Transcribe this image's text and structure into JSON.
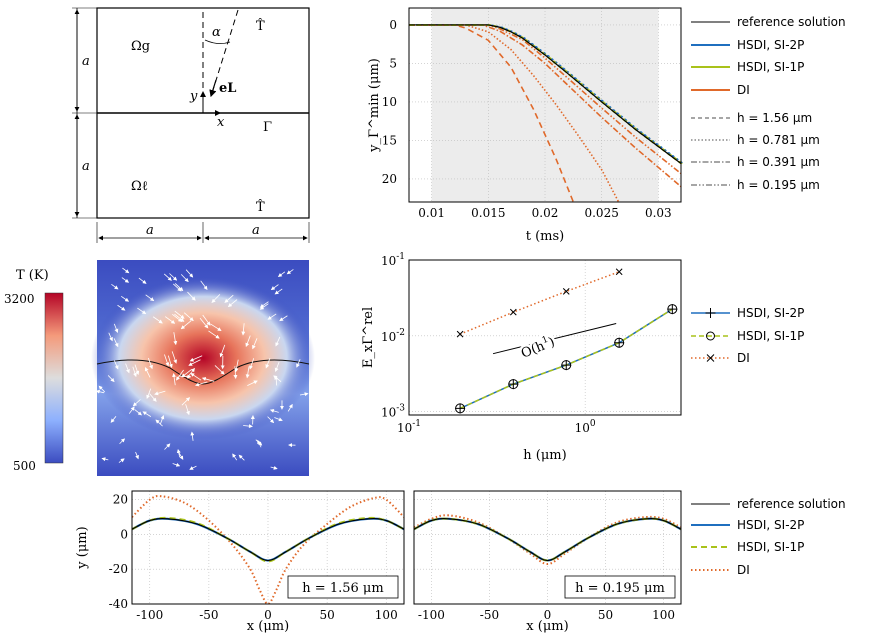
{
  "colors": {
    "reference": "#000000",
    "hsdi_2p": "#1f6fbf",
    "hsdi_1p": "#a9c21a",
    "di": "#e0692a",
    "gray": "#888888",
    "shade": "#ececec"
  },
  "domain": {
    "omega_g": "Ωg",
    "omega_l": "Ωℓ",
    "a_label": "a",
    "alpha": "α",
    "T_hat": "T̂",
    "e_L": "eL",
    "y": "y",
    "x": "x",
    "gamma": "Γ"
  },
  "temperature_colorbar": {
    "label": "T (K)",
    "max": "3200",
    "min": "500"
  },
  "legend_top": {
    "reference": "reference solution",
    "hsdi_2p": "HSDI, SI-2P",
    "hsdi_1p": "HSDI, SI-1P",
    "di": "DI",
    "h1": "h = 1.56 μm",
    "h2": "h = 0.781 μm",
    "h3": "h = 0.391 μm",
    "h4": "h = 0.195 μm"
  },
  "legend_mid": {
    "hsdi_2p": "HSDI, SI-2P",
    "hsdi_1p": "HSDI, SI-1P",
    "di": "DI"
  },
  "legend_bottom": {
    "reference": "reference solution",
    "hsdi_2p": "HSDI, SI-2P",
    "hsdi_1p": "HSDI, SI-1P",
    "di": "DI"
  },
  "chart_data": [
    {
      "type": "line",
      "xlabel": "t (ms)",
      "ylabel": "y_Γ^min (μm)",
      "xlim": [
        0.008,
        0.032
      ],
      "ylim": [
        0,
        23
      ],
      "y_inverted": true,
      "xticks": [
        "0.01",
        "0.015",
        "0.02",
        "0.025",
        "0.03"
      ],
      "yticks": [
        "0",
        "5",
        "10",
        "15",
        "20"
      ],
      "grid": true,
      "legend_position": "outside-right",
      "series": [
        {
          "name": "reference solution",
          "x": [
            0.008,
            0.015,
            0.016,
            0.017,
            0.018,
            0.02,
            0.022,
            0.025,
            0.028,
            0.032
          ],
          "y": [
            0,
            0,
            0.3,
            0.9,
            1.7,
            3.9,
            6.3,
            10.0,
            13.6,
            18.0
          ]
        },
        {
          "name": "HSDI, SI-2P",
          "x": [
            0.008,
            0.015,
            0.016,
            0.017,
            0.018,
            0.02,
            0.022,
            0.025,
            0.028,
            0.032
          ],
          "y": [
            0,
            0,
            0.3,
            0.9,
            1.7,
            3.9,
            6.3,
            10.0,
            13.6,
            18.0
          ]
        },
        {
          "name": "HSDI, SI-1P",
          "x": [
            0.008,
            0.015,
            0.016,
            0.017,
            0.018,
            0.02,
            0.022,
            0.025,
            0.028,
            0.032
          ],
          "y": [
            0,
            0,
            0.3,
            0.9,
            1.7,
            3.9,
            6.3,
            10.0,
            13.6,
            18.0
          ]
        },
        {
          "name": "DI, h = 1.56 μm",
          "x": [
            0.008,
            0.012,
            0.013,
            0.015,
            0.017,
            0.019,
            0.021,
            0.0225
          ],
          "y": [
            0,
            0,
            0.4,
            2.0,
            5.5,
            11.0,
            17.5,
            23
          ]
        },
        {
          "name": "DI, h = 0.781 μm",
          "x": [
            0.008,
            0.013,
            0.015,
            0.017,
            0.019,
            0.021,
            0.023,
            0.025,
            0.0265
          ],
          "y": [
            0,
            0,
            0.9,
            3.2,
            6.6,
            10.4,
            14.5,
            18.8,
            23
          ]
        },
        {
          "name": "DI, h = 0.391 μm",
          "x": [
            0.008,
            0.0145,
            0.016,
            0.018,
            0.02,
            0.022,
            0.025,
            0.028,
            0.032
          ],
          "y": [
            0,
            0,
            0.8,
            2.6,
            5.0,
            7.8,
            12.0,
            16.0,
            21.0
          ]
        },
        {
          "name": "DI, h = 0.195 μm",
          "x": [
            0.008,
            0.015,
            0.016,
            0.018,
            0.02,
            0.022,
            0.025,
            0.028,
            0.032
          ],
          "y": [
            0,
            0,
            0.5,
            1.9,
            4.3,
            6.9,
            10.8,
            14.6,
            19.3
          ]
        }
      ]
    },
    {
      "type": "line",
      "xlabel": "h (μm)",
      "ylabel": "E_xΓ^rel",
      "log_x": true,
      "log_y": true,
      "xlim": [
        0.1,
        3.5
      ],
      "ylim": [
        0.0009,
        0.1
      ],
      "xticks": [
        "10^-1",
        "10^0"
      ],
      "yticks": [
        "10^-3",
        "10^-2",
        "10^-1"
      ],
      "grid": true,
      "annotation": "O(h^1)",
      "legend_position": "outside-right",
      "series": [
        {
          "name": "HSDI, SI-2P",
          "x": [
            0.195,
            0.391,
            0.781,
            1.56,
            3.125
          ],
          "y": [
            0.0011,
            0.0023,
            0.0041,
            0.0081,
            0.0225
          ]
        },
        {
          "name": "HSDI, SI-1P",
          "x": [
            0.195,
            0.391,
            0.781,
            1.56,
            3.125
          ],
          "y": [
            0.0011,
            0.0023,
            0.0041,
            0.0081,
            0.0225
          ]
        },
        {
          "name": "DI",
          "x": [
            0.195,
            0.391,
            0.781,
            1.56
          ],
          "y": [
            0.0105,
            0.0205,
            0.0385,
            0.07
          ]
        }
      ]
    },
    {
      "type": "line",
      "xlabel": "x (μm)",
      "ylabel": "y (μm)",
      "xlim": [
        -115,
        115
      ],
      "ylim": [
        -40,
        25
      ],
      "xticks": [
        "-100",
        "-50",
        "0",
        "50",
        "100"
      ],
      "yticks": [
        "20",
        "0",
        "-20",
        "-40"
      ],
      "grid": true,
      "annotation": "h = 1.56 μm",
      "series": [
        {
          "name": "reference solution",
          "x": [
            -115,
            -100,
            -85,
            -60,
            -35,
            -15,
            0,
            15,
            35,
            60,
            85,
            100,
            115
          ],
          "y": [
            3,
            8,
            9,
            6,
            -2,
            -10,
            -15,
            -10,
            -2,
            6,
            9,
            8,
            3
          ]
        },
        {
          "name": "HSDI, SI-2P",
          "x": [
            -115,
            -100,
            -85,
            -60,
            -35,
            -15,
            0,
            15,
            35,
            60,
            85,
            100,
            115
          ],
          "y": [
            3,
            8,
            9,
            6,
            -2,
            -10,
            -15,
            -10,
            -2,
            6,
            9,
            8,
            3
          ]
        },
        {
          "name": "HSDI, SI-1P",
          "x": [
            -115,
            -100,
            -85,
            -60,
            -35,
            -15,
            0,
            15,
            35,
            60,
            85,
            100,
            115
          ],
          "y": [
            3,
            8,
            9.5,
            6.5,
            -2,
            -10,
            -15.5,
            -10,
            -2,
            6.5,
            9.5,
            8,
            3
          ]
        },
        {
          "name": "DI",
          "x": [
            -115,
            -100,
            -90,
            -70,
            -50,
            -30,
            -15,
            -7,
            0,
            7,
            15,
            30,
            50,
            70,
            90,
            100,
            115
          ],
          "y": [
            10,
            20,
            22,
            18,
            8,
            -6,
            -20,
            -32,
            -40,
            -32,
            -20,
            -6,
            6,
            16,
            21,
            20,
            10
          ]
        }
      ]
    },
    {
      "type": "line",
      "xlabel": "x (μm)",
      "xlim": [
        -115,
        115
      ],
      "ylim": [
        -40,
        25
      ],
      "xticks": [
        "-100",
        "-50",
        "0",
        "50",
        "100"
      ],
      "grid": true,
      "annotation": "h = 0.195 μm",
      "series": [
        {
          "name": "reference solution",
          "x": [
            -115,
            -100,
            -85,
            -60,
            -35,
            -15,
            0,
            15,
            35,
            60,
            85,
            100,
            115
          ],
          "y": [
            3,
            8,
            9,
            6,
            -2,
            -10,
            -15,
            -10,
            -2,
            6,
            9,
            8,
            3
          ]
        },
        {
          "name": "HSDI, SI-2P",
          "x": [
            -115,
            -100,
            -85,
            -60,
            -35,
            -15,
            0,
            15,
            35,
            60,
            85,
            100,
            115
          ],
          "y": [
            3,
            8,
            9,
            6,
            -2,
            -10,
            -15,
            -10,
            -2,
            6,
            9,
            8,
            3
          ]
        },
        {
          "name": "HSDI, SI-1P",
          "x": [
            -115,
            -100,
            -85,
            -60,
            -35,
            -15,
            0,
            15,
            35,
            60,
            85,
            100,
            115
          ],
          "y": [
            3,
            8,
            9,
            6,
            -2,
            -10,
            -15,
            -10,
            -2,
            6,
            9,
            8,
            3
          ]
        },
        {
          "name": "DI",
          "x": [
            -115,
            -100,
            -85,
            -60,
            -35,
            -15,
            0,
            15,
            35,
            60,
            85,
            100,
            115
          ],
          "y": [
            4,
            9,
            11,
            7,
            -2,
            -11,
            -17,
            -11,
            -2,
            7,
            10,
            9,
            4
          ]
        }
      ]
    }
  ]
}
